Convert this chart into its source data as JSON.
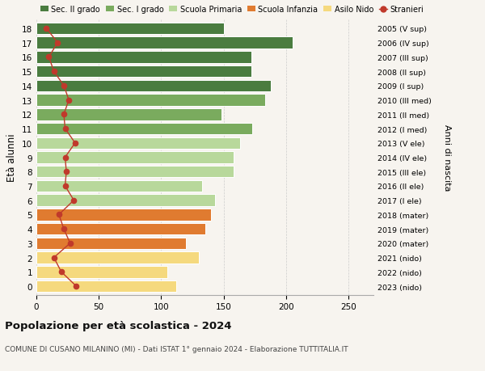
{
  "ages": [
    18,
    17,
    16,
    15,
    14,
    13,
    12,
    11,
    10,
    9,
    8,
    7,
    6,
    5,
    4,
    3,
    2,
    1,
    0
  ],
  "bar_values": [
    150,
    205,
    172,
    172,
    188,
    183,
    148,
    173,
    163,
    158,
    158,
    133,
    143,
    140,
    135,
    120,
    130,
    105,
    112
  ],
  "stranieri_values": [
    8,
    17,
    10,
    14,
    22,
    26,
    22,
    23,
    31,
    23,
    24,
    23,
    30,
    18,
    22,
    27,
    14,
    20,
    32
  ],
  "bar_colors": [
    "#4a7c3f",
    "#4a7c3f",
    "#4a7c3f",
    "#4a7c3f",
    "#4a7c3f",
    "#7aab5e",
    "#7aab5e",
    "#7aab5e",
    "#b8d89b",
    "#b8d89b",
    "#b8d89b",
    "#b8d89b",
    "#b8d89b",
    "#e07b30",
    "#e07b30",
    "#e07b30",
    "#f5d97e",
    "#f5d97e",
    "#f5d97e"
  ],
  "right_labels": [
    "2005 (V sup)",
    "2006 (IV sup)",
    "2007 (III sup)",
    "2008 (II sup)",
    "2009 (I sup)",
    "2010 (III med)",
    "2011 (II med)",
    "2012 (I med)",
    "2013 (V ele)",
    "2014 (IV ele)",
    "2015 (III ele)",
    "2016 (II ele)",
    "2017 (I ele)",
    "2018 (mater)",
    "2019 (mater)",
    "2020 (mater)",
    "2021 (nido)",
    "2022 (nido)",
    "2023 (nido)"
  ],
  "legend_labels": [
    "Sec. II grado",
    "Sec. I grado",
    "Scuola Primaria",
    "Scuola Infanzia",
    "Asilo Nido",
    "Stranieri"
  ],
  "legend_colors": [
    "#4a7c3f",
    "#7aab5e",
    "#b8d89b",
    "#e07b30",
    "#f5d97e",
    "#c0392b"
  ],
  "stranieri_color": "#c0392b",
  "ylabel": "Età alunni",
  "right_ylabel": "Anni di nascita",
  "title": "Popolazione per età scolastica - 2024",
  "subtitle": "COMUNE DI CUSANO MILANINO (MI) - Dati ISTAT 1° gennaio 2024 - Elaborazione TUTTITALIA.IT",
  "xlim": [
    0,
    270
  ],
  "xticks": [
    0,
    50,
    100,
    150,
    200,
    250
  ],
  "background_color": "#f7f4ef",
  "grid_color": "#cccccc"
}
